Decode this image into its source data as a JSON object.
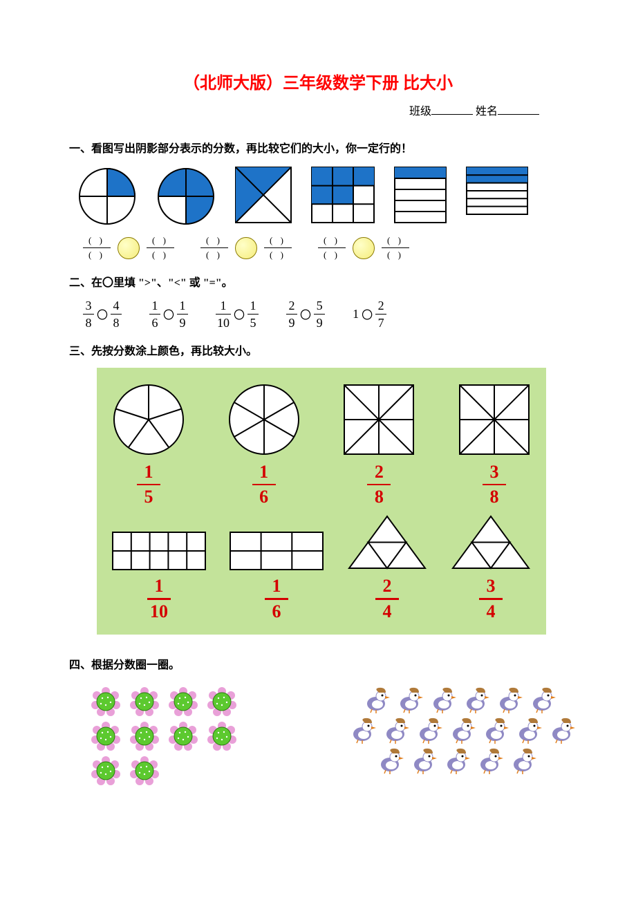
{
  "title": "（北师大版）三年级数学下册    比大小",
  "nameline": {
    "class_label": "班级",
    "name_label": "姓名"
  },
  "sections": {
    "s1": "一、看图写出阴影部分表示的分数，再比较它们的大小，你一定行的！",
    "s2": "二、在〇里填 \">\"、\"<\" 或 \"=\"。",
    "s3": "三、先按分数涂上颜色，再比较大小。",
    "s4": "四、根据分数圈一圈。"
  },
  "q1_blank": {
    "top": "(      )",
    "bot": "(      )"
  },
  "colors": {
    "blue": "#1e73c8",
    "outline": "#000000",
    "yellow_fill": "#f5ec7a",
    "yellow_stroke": "#8a7a00",
    "green_bg": "#c3e39a",
    "red": "#d40000",
    "flower_green": "#5cc92f",
    "flower_pink": "#e9a0d8",
    "bird_body": "#8f89c4",
    "bird_beak": "#e07f1f",
    "bird_hat": "#b07a3a"
  },
  "q2_pairs": [
    {
      "a_n": "3",
      "a_d": "8",
      "b_n": "4",
      "b_d": "8"
    },
    {
      "a_n": "1",
      "a_d": "6",
      "b_n": "1",
      "b_d": "9"
    },
    {
      "a_n": "1",
      "a_d": "10",
      "b_n": "1",
      "b_d": "5"
    },
    {
      "a_n": "2",
      "a_d": "9",
      "b_n": "5",
      "b_d": "9"
    },
    {
      "a_whole": "1",
      "b_n": "2",
      "b_d": "7"
    }
  ],
  "q3_row1": [
    {
      "n": "1",
      "d": "5"
    },
    {
      "n": "1",
      "d": "6"
    },
    {
      "n": "2",
      "d": "8"
    },
    {
      "n": "3",
      "d": "8"
    }
  ],
  "q3_row2": [
    {
      "n": "1",
      "d": "10"
    },
    {
      "n": "1",
      "d": "6"
    },
    {
      "n": "2",
      "d": "4"
    },
    {
      "n": "3",
      "d": "4"
    }
  ],
  "q4": {
    "flower_rows": [
      4,
      4,
      2
    ],
    "bird_rows": [
      6,
      7,
      5
    ]
  }
}
